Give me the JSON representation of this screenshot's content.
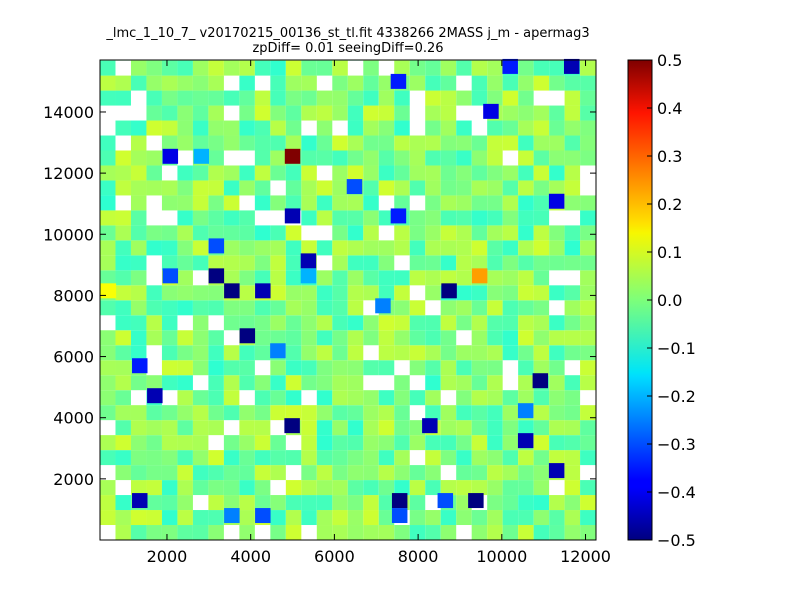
{
  "chart_data": {
    "type": "heatmap",
    "title": "_lmc_1_10_7_ v20170215_00136_st_tl.fit 4338266 2MASS j_m - apermag3",
    "subtitle": "zpDiff= 0.01 seeingDiff=0.26",
    "xlabel": "",
    "ylabel": "",
    "xlim": [
      400,
      12250
    ],
    "ylim": [
      0,
      15700
    ],
    "x_ticks": [
      2000,
      4000,
      6000,
      8000,
      10000,
      12000
    ],
    "x_tick_labels": [
      "2000",
      "4000",
      "6000",
      "8000",
      "10000",
      "12000"
    ],
    "y_ticks": [
      2000,
      4000,
      6000,
      8000,
      10000,
      12000,
      14000
    ],
    "y_tick_labels": [
      "2000",
      "4000",
      "6000",
      "8000",
      "10000",
      "12000",
      "14000"
    ],
    "grid": false,
    "colormap": "jet",
    "colorbar": {
      "vmin": -0.5,
      "vmax": 0.5,
      "ticks": [
        0.5,
        0.4,
        0.3,
        0.2,
        0.1,
        0.0,
        -0.1,
        -0.2,
        -0.3,
        -0.4,
        -0.5
      ],
      "tick_labels": [
        "0.5",
        "0.4",
        "0.3",
        "0.2",
        "0.1",
        "0.0",
        "−0.1",
        "−0.2",
        "−0.3",
        "−0.4",
        "−0.5"
      ]
    },
    "bin_size": [
      370,
      490
    ],
    "cells": [
      {
        "x": 5000,
        "y": 12550,
        "value": 0.5
      },
      {
        "x": 9470,
        "y": 8640,
        "value": 0.22
      },
      {
        "x": 600,
        "y": 8150,
        "value": 0.12
      },
      {
        "x": 2080,
        "y": 12550,
        "value": -0.4
      },
      {
        "x": 2820,
        "y": 12550,
        "value": -0.2
      },
      {
        "x": 5000,
        "y": 10600,
        "value": -0.45
      },
      {
        "x": 5380,
        "y": 9130,
        "value": -0.45
      },
      {
        "x": 5380,
        "y": 8640,
        "value": -0.2
      },
      {
        "x": 3180,
        "y": 8640,
        "value": -0.5
      },
      {
        "x": 3550,
        "y": 8150,
        "value": -0.5
      },
      {
        "x": 4290,
        "y": 8150,
        "value": -0.45
      },
      {
        "x": 8740,
        "y": 8150,
        "value": -0.5
      },
      {
        "x": 3920,
        "y": 6680,
        "value": -0.5
      },
      {
        "x": 4650,
        "y": 6190,
        "value": -0.25
      },
      {
        "x": 1350,
        "y": 5700,
        "value": -0.35
      },
      {
        "x": 1710,
        "y": 4720,
        "value": -0.45
      },
      {
        "x": 10920,
        "y": 5210,
        "value": -0.5
      },
      {
        "x": 10570,
        "y": 4230,
        "value": -0.25
      },
      {
        "x": 4990,
        "y": 3740,
        "value": -0.5
      },
      {
        "x": 8280,
        "y": 3740,
        "value": -0.45
      },
      {
        "x": 10570,
        "y": 3250,
        "value": -0.45
      },
      {
        "x": 11310,
        "y": 2270,
        "value": -0.45
      },
      {
        "x": 1350,
        "y": 1290,
        "value": -0.45
      },
      {
        "x": 7560,
        "y": 1290,
        "value": -0.5
      },
      {
        "x": 9380,
        "y": 1290,
        "value": -0.5
      },
      {
        "x": 8650,
        "y": 1290,
        "value": -0.3
      },
      {
        "x": 3550,
        "y": 800,
        "value": -0.25
      },
      {
        "x": 4290,
        "y": 800,
        "value": -0.3
      },
      {
        "x": 7560,
        "y": 800,
        "value": -0.3
      },
      {
        "x": 10200,
        "y": 15490,
        "value": -0.35
      },
      {
        "x": 11670,
        "y": 15490,
        "value": -0.45
      },
      {
        "x": 7530,
        "y": 15000,
        "value": -0.35
      },
      {
        "x": 9740,
        "y": 14020,
        "value": -0.4
      },
      {
        "x": 11310,
        "y": 11080,
        "value": -0.4
      },
      {
        "x": 7530,
        "y": 10600,
        "value": -0.35
      },
      {
        "x": 3180,
        "y": 9620,
        "value": -0.3
      },
      {
        "x": 6480,
        "y": 11560,
        "value": -0.3
      },
      {
        "x": 2080,
        "y": 8640,
        "value": -0.3
      },
      {
        "x": 7160,
        "y": 7660,
        "value": -0.25
      }
    ]
  }
}
